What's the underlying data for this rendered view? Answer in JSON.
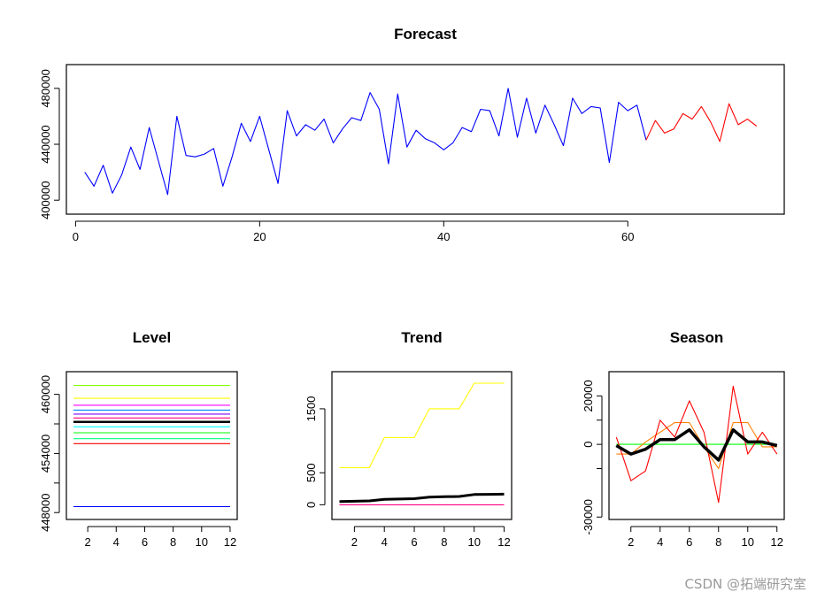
{
  "watermark": "CSDN @拓端研究室",
  "chart_data": [
    {
      "type": "line",
      "title": "Forecast",
      "xlabel": "",
      "ylabel": "",
      "xlim": [
        -1,
        77
      ],
      "ylim": [
        390000,
        497000
      ],
      "x_ticks": [
        0,
        20,
        40,
        60
      ],
      "y_ticks": [
        400000,
        440000,
        480000
      ],
      "grid": false,
      "series": [
        {
          "color": "#0000ff",
          "x": [
            1,
            2,
            3,
            4,
            5,
            6,
            7,
            8,
            9,
            10,
            11,
            12,
            13,
            14,
            15,
            16,
            17,
            18,
            19,
            20,
            21,
            22,
            23,
            24,
            25,
            26,
            27,
            28,
            29,
            30,
            31,
            32,
            33,
            34,
            35,
            36,
            37,
            38,
            39,
            40,
            41,
            42,
            43,
            44,
            45,
            46,
            47,
            48,
            49,
            50,
            51,
            52,
            53,
            54,
            55,
            56,
            57,
            58,
            59,
            60,
            61,
            62
          ],
          "values": [
            420000,
            410000,
            425000,
            405000,
            418000,
            438000,
            422000,
            452000,
            428000,
            404000,
            460000,
            432000,
            431000,
            433000,
            437000,
            410000,
            431000,
            455000,
            442000,
            460000,
            436000,
            412000,
            464000,
            446000,
            454000,
            450000,
            458000,
            441000,
            451000,
            459000,
            457000,
            477000,
            465000,
            426000,
            476000,
            438000,
            450000,
            444000,
            441000,
            436000,
            441000,
            452000,
            449000,
            465000,
            464000,
            446000,
            480000,
            445000,
            473000,
            448000,
            468000,
            454000,
            439000,
            473000,
            462000,
            467000,
            466000,
            427000,
            470000,
            464000,
            468000,
            443000
          ]
        },
        {
          "color": "#ff0000",
          "x": [
            62,
            63,
            64,
            65,
            66,
            67,
            68,
            69,
            70,
            71,
            72,
            73,
            74
          ],
          "values": [
            443000,
            457000,
            448000,
            451000,
            462000,
            458000,
            467000,
            456000,
            442000,
            469000,
            454000,
            458000,
            453000
          ]
        }
      ]
    },
    {
      "type": "line",
      "title": "Level",
      "xlabel": "",
      "ylabel": "",
      "xlim": [
        0.5,
        12.5
      ],
      "ylim": [
        447300,
        462300
      ],
      "x_ticks": [
        2,
        4,
        6,
        8,
        10,
        12
      ],
      "y_ticks": [
        448000,
        451000,
        454000,
        457000,
        460000
      ],
      "y_tick_labels": [
        "448000",
        "",
        "454000",
        "",
        "460000"
      ],
      "grid": false,
      "series": [
        {
          "color": "#80ff00",
          "x": [
            1,
            12
          ],
          "values": [
            460900,
            460900
          ]
        },
        {
          "color": "#ffff00",
          "x": [
            1,
            12
          ],
          "values": [
            459600,
            459600
          ]
        },
        {
          "color": "#ff00ff",
          "x": [
            1,
            12
          ],
          "values": [
            458900,
            458900
          ]
        },
        {
          "color": "#0080ff",
          "x": [
            1,
            12
          ],
          "values": [
            458400,
            458400
          ]
        },
        {
          "color": "#7f00ff",
          "x": [
            1,
            12
          ],
          "values": [
            458000,
            458000
          ]
        },
        {
          "color": "#ff0080",
          "x": [
            1,
            12
          ],
          "values": [
            457600,
            457600
          ]
        },
        {
          "color": "#000000",
          "x": [
            1,
            12
          ],
          "values": [
            457200,
            457200
          ],
          "width": 2.5
        },
        {
          "color": "#00ffff",
          "x": [
            1,
            12
          ],
          "values": [
            456700,
            456700
          ]
        },
        {
          "color": "#00ff00",
          "x": [
            1,
            12
          ],
          "values": [
            456100,
            456100
          ]
        },
        {
          "color": "#00ff80",
          "x": [
            1,
            12
          ],
          "values": [
            455500,
            455500
          ]
        },
        {
          "color": "#ff0000",
          "x": [
            1,
            12
          ],
          "values": [
            455000,
            455000
          ]
        },
        {
          "color": "#0000ff",
          "x": [
            1,
            12
          ],
          "values": [
            448600,
            448600
          ]
        }
      ]
    },
    {
      "type": "line",
      "title": "Trend",
      "xlabel": "",
      "ylabel": "",
      "xlim": [
        0.5,
        12.5
      ],
      "ylim": [
        -230,
        2080
      ],
      "x_ticks": [
        2,
        4,
        6,
        8,
        10,
        12
      ],
      "y_ticks": [
        0,
        500,
        1500
      ],
      "grid": false,
      "series": [
        {
          "color": "#ffff00",
          "x": [
            1,
            2,
            3,
            4,
            5,
            6,
            7,
            8,
            9,
            10,
            11,
            12
          ],
          "values": [
            580,
            580,
            580,
            1050,
            1050,
            1050,
            1500,
            1500,
            1500,
            1900,
            1900,
            1900
          ]
        },
        {
          "color": "#ff0080",
          "x": [
            1,
            12
          ],
          "values": [
            0,
            0
          ]
        },
        {
          "color": "#000000",
          "width": 3,
          "x": [
            1,
            2,
            3,
            4,
            5,
            6,
            7,
            8,
            9,
            10,
            11,
            12
          ],
          "values": [
            50,
            55,
            60,
            85,
            90,
            95,
            120,
            125,
            130,
            160,
            163,
            165
          ]
        }
      ]
    },
    {
      "type": "line",
      "title": "Season",
      "xlabel": "",
      "ylabel": "",
      "xlim": [
        0.5,
        12.5
      ],
      "ylim": [
        -31000,
        30000
      ],
      "x_ticks": [
        2,
        4,
        6,
        8,
        10,
        12
      ],
      "y_ticks": [
        -30000,
        0,
        20000
      ],
      "y_minor_ticks": [
        -10000,
        10000
      ],
      "grid": false,
      "series": [
        {
          "color": "#00ff00",
          "x": [
            1,
            12
          ],
          "values": [
            0,
            0
          ]
        },
        {
          "color": "#ff8000",
          "x": [
            1,
            2,
            3,
            4,
            5,
            6,
            7,
            8,
            9,
            10,
            11,
            12
          ],
          "values": [
            -4000,
            -4000,
            1000,
            5000,
            9000,
            9000,
            -1000,
            -10000,
            9000,
            9000,
            -1000,
            -1000
          ]
        },
        {
          "color": "#ff0000",
          "x": [
            1,
            2,
            3,
            4,
            5,
            6,
            7,
            8,
            9,
            10,
            11,
            12
          ],
          "values": [
            3000,
            -15000,
            -11000,
            10000,
            3000,
            18000,
            5000,
            -24000,
            24000,
            -4000,
            5000,
            -4000
          ]
        },
        {
          "color": "#000000",
          "width": 3.5,
          "x": [
            1,
            2,
            3,
            4,
            5,
            6,
            7,
            8,
            9,
            10,
            11,
            12
          ],
          "values": [
            -500,
            -4000,
            -2000,
            2000,
            2000,
            6000,
            -1000,
            -6500,
            6000,
            1000,
            1000,
            -500
          ]
        }
      ]
    }
  ]
}
